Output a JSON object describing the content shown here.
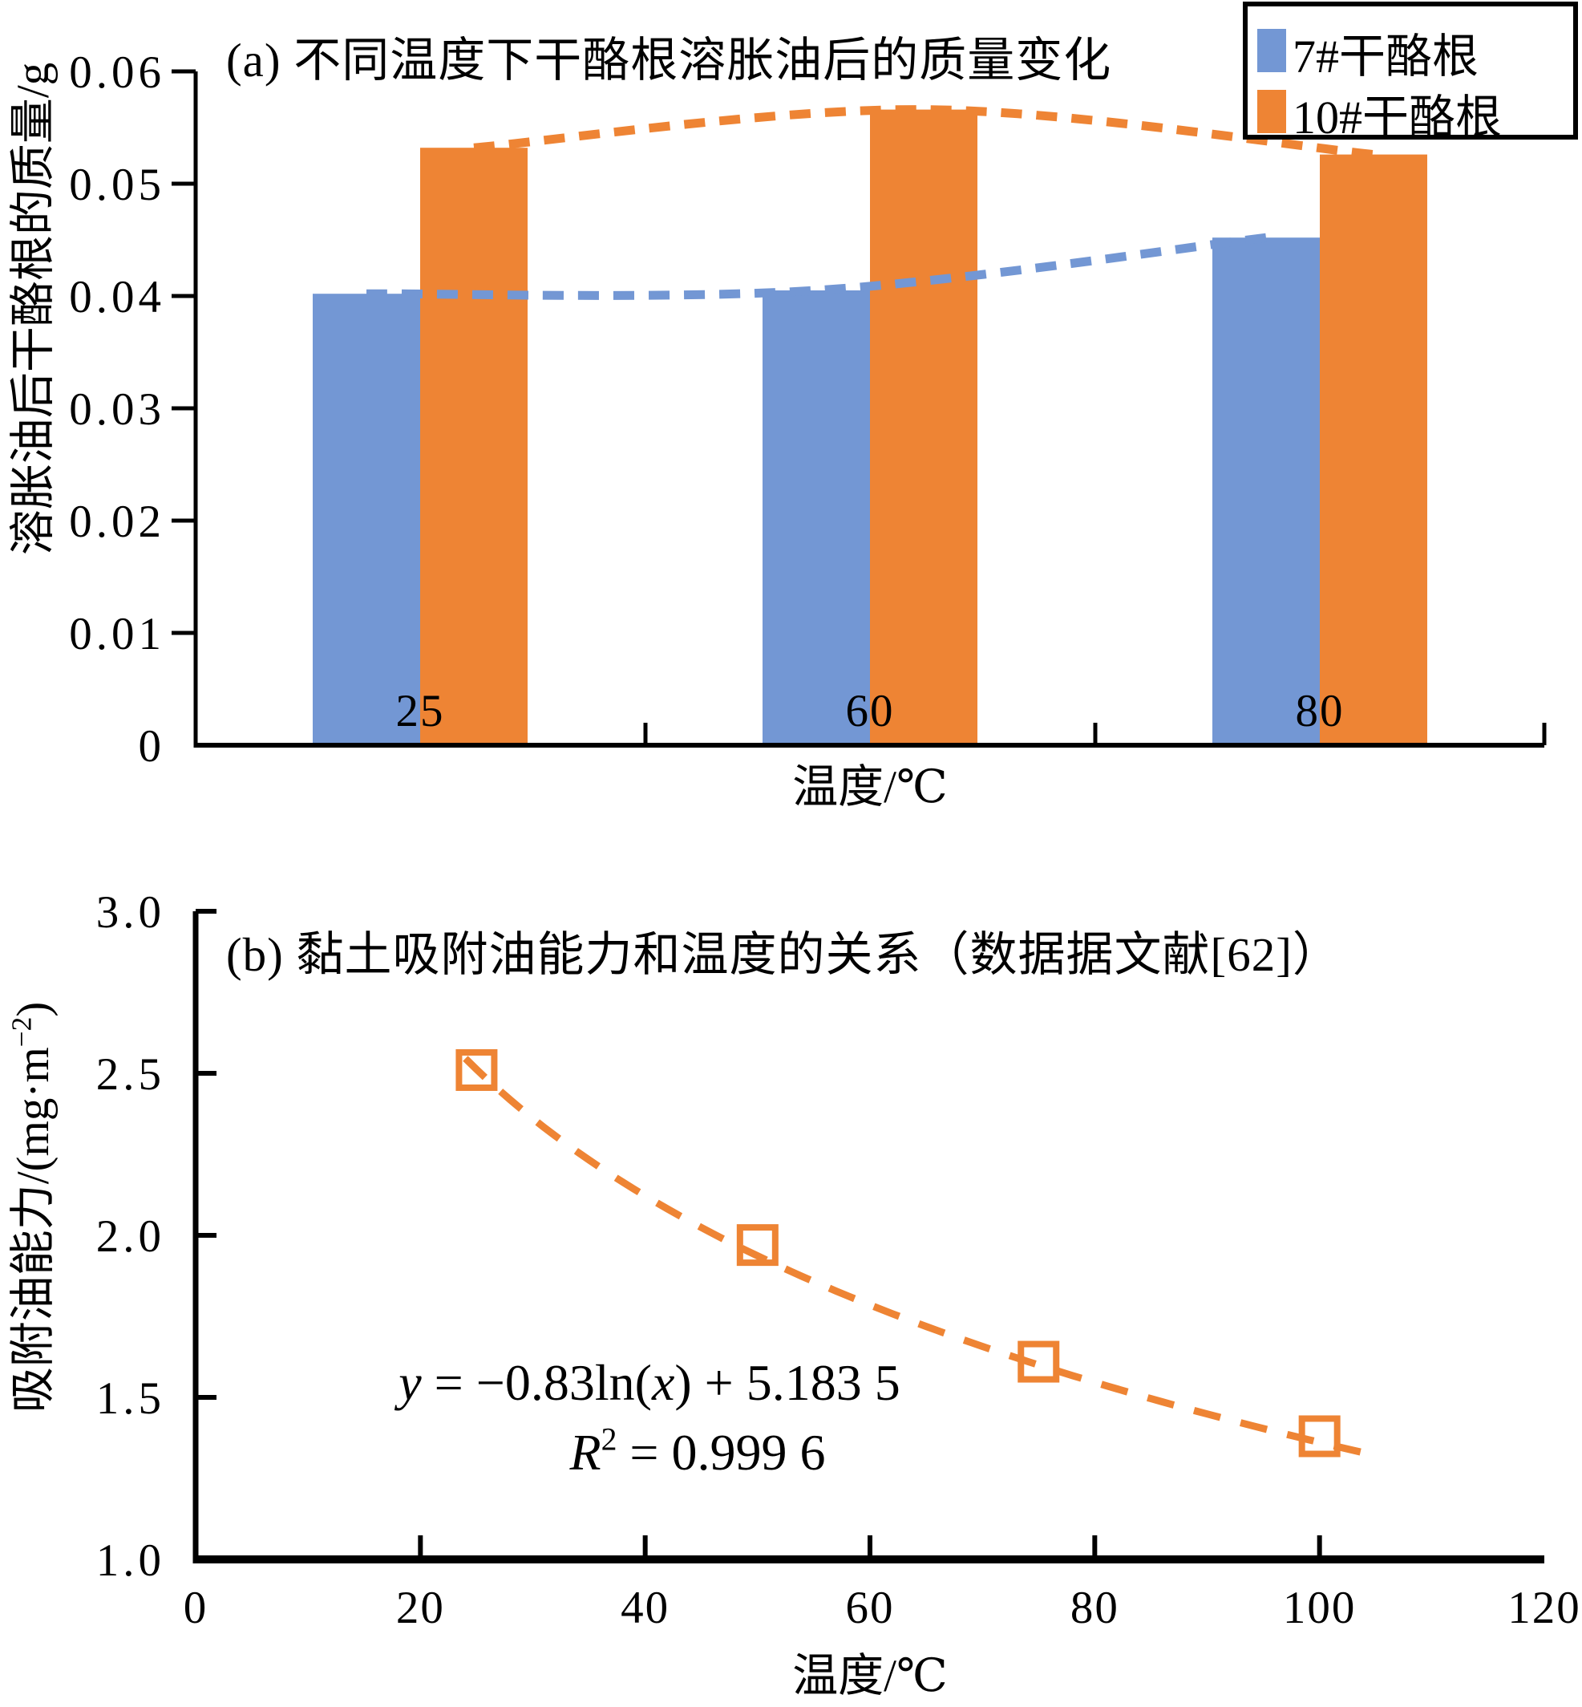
{
  "page": {
    "background": "#ffffff"
  },
  "chart_data": [
    {
      "id": "a",
      "type": "bar",
      "title": "(a) 不同温度下干酪根溶胀油后的质量变化",
      "xlabel": "温度/℃",
      "ylabel": "溶胀油后干酪根的质量/g",
      "categories": [
        "25",
        "60",
        "80"
      ],
      "series": [
        {
          "name": "7#干酪根",
          "color": "#7397d4",
          "values": [
            0.0402,
            0.0405,
            0.0452
          ]
        },
        {
          "name": "10#干酪根",
          "color": "#ee8434",
          "values": [
            0.0532,
            0.0566,
            0.0526
          ]
        }
      ],
      "trendline_style": "dashed-curve-through-bar-tops",
      "ylim": [
        0,
        0.06
      ],
      "ytick_labels": [
        "0",
        "0.01",
        "0.02",
        "0.03",
        "0.04",
        "0.05",
        "0.06"
      ],
      "grid": false,
      "legend": {
        "position": "top-right",
        "items": [
          {
            "label": "7#干酪根",
            "color": "#7397d4"
          },
          {
            "label": "10#干酪根",
            "color": "#ee8434"
          }
        ]
      }
    },
    {
      "id": "b",
      "type": "scatter",
      "title": "(b) 黏土吸附油能力和温度的关系（数据据文献[62]）",
      "xlabel": "温度/℃",
      "ylabel": "吸附油能力/(mg·m⁻²)",
      "ylabel_parts": [
        {
          "t": "吸附油能力/(mg·m"
        },
        {
          "t": "−2",
          "sup": true
        },
        {
          "t": ")"
        }
      ],
      "x": [
        25,
        50,
        75,
        100
      ],
      "y": [
        2.51,
        1.97,
        1.61,
        1.38
      ],
      "marker": {
        "shape": "open-square",
        "color": "#ee8434"
      },
      "trendline": {
        "type": "logarithmic",
        "coef_a": -0.83,
        "coef_b": 5.1835,
        "x_range": [
          24,
          104
        ],
        "equation": "y = −0.83ln(x) + 5.183 5",
        "r_squared": "R² = 0.999 6",
        "equation_parts": [
          {
            "t": "y",
            "i": true
          },
          {
            "t": " = −0.83ln("
          },
          {
            "t": "x",
            "i": true
          },
          {
            "t": ") + 5.183 5"
          }
        ],
        "r2_parts": [
          {
            "t": "R",
            "i": true
          },
          {
            "t": "2",
            "sup": true
          },
          {
            "t": " = 0.999 6"
          }
        ]
      },
      "xlim": [
        0,
        120
      ],
      "xticks": [
        "0",
        "20",
        "40",
        "60",
        "80",
        "100",
        "120"
      ],
      "ylim": [
        1.0,
        3.0
      ],
      "yticks": [
        "1.0",
        "1.5",
        "2.0",
        "2.5",
        "3.0"
      ],
      "grid": false
    }
  ]
}
